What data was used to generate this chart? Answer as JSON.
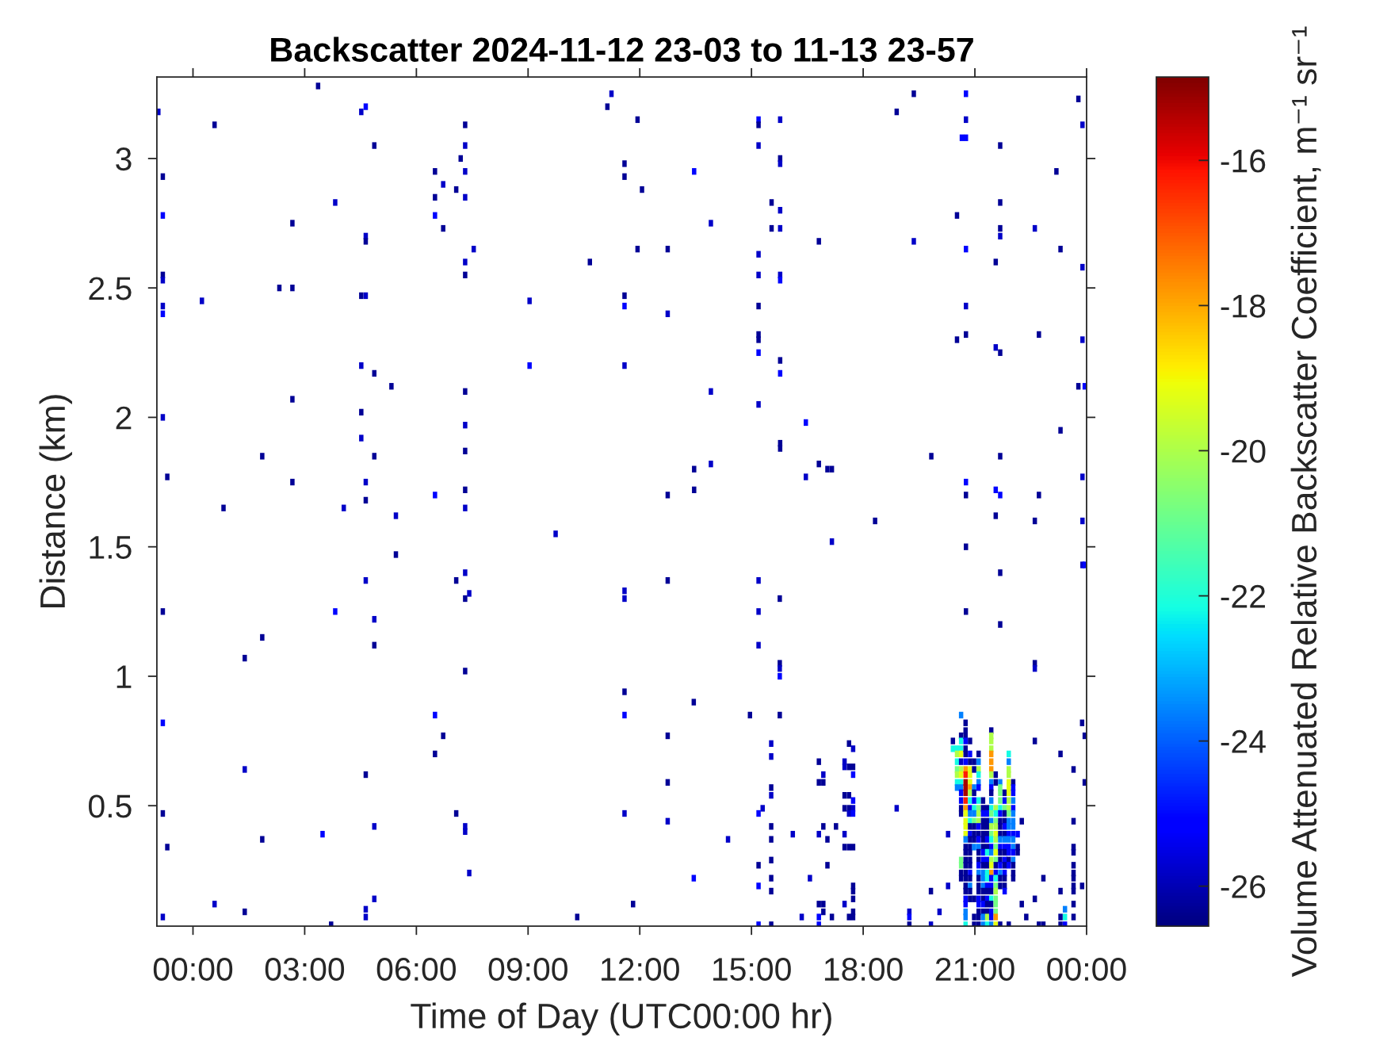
{
  "chart_data": {
    "type": "scatter",
    "title": "Backscatter 2024-11-12 23-03 to 11-13 23-57",
    "xlabel": "Time of Day (UTC00:00 hr)",
    "ylabel": "Distance (km)",
    "clabel": "Volume Attenuated Relative Backscatter Coefficient, m⁻¹ sr⁻¹",
    "xlim": [
      -0.97,
      24
    ],
    "xticks": [
      {
        "value": 0,
        "label": "00:00"
      },
      {
        "value": 3,
        "label": "03:00"
      },
      {
        "value": 6,
        "label": "06:00"
      },
      {
        "value": 9,
        "label": "09:00"
      },
      {
        "value": 12,
        "label": "12:00"
      },
      {
        "value": 15,
        "label": "15:00"
      },
      {
        "value": 18,
        "label": "18:00"
      },
      {
        "value": 21,
        "label": "21:00"
      },
      {
        "value": 24,
        "label": "00:00"
      }
    ],
    "ylim": [
      0.035,
      3.315
    ],
    "yticks": [
      0.5,
      1,
      1.5,
      2,
      2.5,
      3
    ],
    "clim": [
      -26.55,
      -14.85
    ],
    "cticks": [
      -26,
      -24,
      -22,
      -20,
      -18,
      -16
    ],
    "marker": "square",
    "x": [
      3.36,
      11.24,
      11.13,
      4.64,
      4.52,
      -0.93,
      0.58,
      7.31,
      4.87,
      7.31,
      7.19,
      6.5,
      7.31,
      -0.81,
      6.72,
      7.07,
      6.5,
      7.31,
      3.82,
      -0.81,
      6.5,
      2.67,
      6.72,
      4.64,
      4.64,
      7.54,
      7.31,
      10.66,
      7.31,
      -0.81,
      -0.81,
      2.32,
      2.67,
      4.52,
      4.64,
      0.24,
      9.04,
      -0.81,
      -0.81,
      4.52,
      9.04,
      4.87,
      5.33,
      7.31,
      2.67,
      -0.81,
      4.52,
      7.31,
      4.52,
      7.31,
      1.86,
      4.87,
      -0.69,
      2.67,
      4.64,
      7.31,
      6.5,
      4.64,
      11.94,
      15.19,
      15.19,
      15.77,
      19.36,
      20.76,
      18.9,
      20.76,
      23.78,
      23.89,
      20.65,
      20.76,
      21.68,
      15.19,
      15.77,
      15.77,
      11.59,
      13.46,
      11.59,
      12.06,
      23.19,
      15.54,
      15.77,
      21.68,
      20.52,
      13.91,
      15.54,
      15.77,
      21.68,
      21.68,
      22.61,
      16.81,
      19.36,
      11.94,
      12.75,
      20.76,
      23.3,
      15.19,
      21.56,
      23.89,
      15.19,
      15.77,
      15.77,
      11.59,
      11.59,
      12.75,
      15.19,
      20.76,
      15.19,
      15.19,
      20.76,
      20.52,
      22.72,
      23.89,
      21.56,
      21.68,
      15.19,
      15.77,
      11.59,
      15.77,
      13.91,
      23.78,
      23.95,
      15.19,
      16.46,
      23.3,
      15.77,
      15.77,
      19.83,
      21.68,
      13.91,
      13.46,
      16.81,
      17.04,
      17.16,
      16.46,
      23.89,
      13.46,
      12.75,
      20.76,
      20.76,
      21.56,
      21.68,
      22.72,
      0.82,
      4.05,
      5.45,
      7.31,
      9.74,
      5.45,
      4.64,
      7.31,
      7.07,
      7.42,
      7.31,
      -0.81,
      3.82,
      4.87,
      1.86,
      4.87,
      1.39,
      7.31,
      -0.81,
      6.5,
      6.72,
      6.5,
      1.39,
      4.64,
      -0.81,
      7.07,
      4.87,
      7.31,
      7.31,
      3.48,
      -0.69,
      1.86,
      7.42,
      4.87,
      0.58,
      1.39,
      -0.81,
      4.64,
      4.64,
      3.71,
      10.32,
      18.32,
      17.16,
      12.75,
      15.19,
      11.59,
      11.59,
      15.76,
      15.19,
      15.19,
      15.76,
      15.76,
      15.76,
      11.59,
      13.45,
      11.59,
      14.96,
      15.76,
      12.75,
      15.53,
      15.53,
      17.62,
      17.73,
      16.81,
      17.5,
      17.5,
      17.62,
      17.73,
      17.73,
      16.93,
      16.81,
      16.93,
      12.75,
      15.53,
      15.53,
      17.5,
      17.62,
      17.73,
      17.5,
      17.62,
      17.62,
      17.73,
      17.73,
      15.3,
      15.19,
      18.9,
      11.59,
      12.75,
      15.53,
      16.93,
      17.27,
      16.11,
      16.81,
      17.5,
      20.28,
      14.37,
      15.53,
      17.04,
      17.5,
      17.62,
      17.73,
      15.53,
      15.19,
      17.04,
      13.45,
      15.53,
      16.57,
      15.19,
      20.28,
      15.53,
      17.73,
      17.73,
      17.73,
      19.82,
      11.82,
      16.81,
      16.93,
      16.93,
      17.5,
      20.05,
      17.73,
      17.62,
      17.73,
      19.24,
      19.24,
      19.24,
      16.35,
      16.81,
      16.81,
      17.16,
      15.19,
      15.53,
      19.82,
      21.56,
      22.61,
      23.89,
      20.76,
      23.89,
      23.95,
      21.68,
      20.76,
      21.68,
      22.61,
      22.61,
      20.41,
      20.41,
      20.52,
      20.52,
      20.52,
      20.52,
      20.52,
      20.52,
      20.52,
      20.63,
      20.63,
      20.63,
      20.63,
      20.63,
      20.63,
      20.63,
      20.63,
      20.63,
      20.63,
      20.63,
      20.63,
      20.63,
      20.63,
      20.63,
      20.63,
      20.63,
      20.63,
      20.75,
      20.75,
      20.75,
      20.75,
      20.75,
      20.75,
      20.75,
      20.75,
      20.75,
      20.75,
      20.75,
      20.75,
      20.75,
      20.75,
      20.75,
      20.75,
      20.75,
      20.75,
      20.75,
      20.75,
      20.75,
      20.75,
      20.75,
      20.75,
      20.75,
      20.75,
      20.75,
      20.75,
      20.75,
      20.75,
      20.75,
      20.75,
      20.87,
      20.87,
      20.87,
      20.87,
      20.87,
      20.87,
      20.87,
      20.87,
      20.87,
      20.87,
      20.87,
      20.87,
      20.87,
      20.87,
      20.87,
      20.87,
      20.87,
      20.87,
      20.87,
      20.87,
      20.87,
      20.87,
      20.87,
      20.87,
      20.98,
      20.98,
      20.98,
      20.98,
      20.98,
      20.98,
      20.98,
      20.98,
      20.98,
      20.98,
      20.98,
      20.98,
      20.98,
      20.98,
      20.98,
      21.1,
      21.1,
      21.1,
      21.1,
      21.1,
      21.1,
      21.1,
      21.1,
      21.1,
      21.1,
      21.1,
      21.1,
      21.1,
      21.1,
      21.1,
      21.1,
      21.1,
      21.1,
      21.1,
      21.1,
      21.1,
      21.1,
      21.1,
      21.1,
      21.1,
      21.1,
      21.22,
      21.22,
      21.22,
      21.22,
      21.22,
      21.22,
      21.22,
      21.22,
      21.22,
      21.22,
      21.22,
      21.22,
      21.22,
      21.22,
      21.22,
      21.22,
      21.22,
      21.22,
      21.22,
      21.22,
      21.33,
      21.33,
      21.33,
      21.33,
      21.33,
      21.33,
      21.33,
      21.33,
      21.33,
      21.33,
      21.33,
      21.33,
      21.33,
      21.33,
      21.33,
      21.33,
      21.33,
      21.33,
      21.33,
      21.44,
      21.44,
      21.44,
      21.44,
      21.44,
      21.44,
      21.44,
      21.44,
      21.44,
      21.44,
      21.44,
      21.44,
      21.44,
      21.44,
      21.44,
      21.44,
      21.44,
      21.44,
      21.44,
      21.44,
      21.44,
      21.44,
      21.44,
      21.44,
      21.44,
      21.44,
      21.44,
      21.44,
      21.44,
      21.44,
      21.44,
      21.56,
      21.56,
      21.56,
      21.56,
      21.56,
      21.56,
      21.56,
      21.56,
      21.56,
      21.56,
      21.56,
      21.56,
      21.56,
      21.56,
      21.56,
      21.56,
      21.56,
      21.56,
      21.56,
      21.56,
      21.56,
      21.68,
      21.68,
      21.68,
      21.68,
      21.68,
      21.68,
      21.68,
      21.68,
      21.68,
      21.68,
      21.68,
      21.68,
      21.68,
      21.68,
      21.68,
      21.68,
      21.68,
      21.68,
      21.8,
      21.8,
      21.8,
      21.8,
      21.8,
      21.8,
      21.8,
      21.8,
      21.8,
      21.8,
      21.8,
      21.8,
      21.8,
      21.8,
      21.8,
      21.8,
      21.91,
      21.91,
      21.91,
      21.91,
      21.91,
      21.91,
      21.91,
      21.91,
      21.91,
      21.91,
      21.91,
      21.91,
      21.91,
      21.91,
      21.91,
      21.91,
      21.91,
      21.91,
      21.91,
      22.03,
      22.03,
      22.03,
      22.03,
      22.03,
      22.03,
      22.03,
      22.03,
      22.03,
      22.03,
      22.03,
      22.03,
      22.03,
      22.03,
      22.03,
      22.03,
      22.15,
      22.15,
      22.15,
      22.26,
      22.26,
      22.38,
      22.61,
      22.61,
      22.72,
      22.84,
      22.84,
      23.3,
      23.3,
      23.3,
      23.3,
      23.42,
      23.42,
      23.42,
      23.65,
      23.65,
      23.65,
      23.65,
      23.65,
      23.65,
      23.65,
      23.65,
      23.65,
      23.65,
      23.65,
      23.88,
      23.88,
      23.95,
      23.95
    ],
    "values": [
      3.28,
      3.25,
      3.2,
      3.2,
      3.18,
      3.18,
      3.13,
      3.13,
      3.05,
      3.05,
      3.0,
      2.95,
      2.95,
      2.93,
      2.9,
      2.88,
      2.85,
      2.85,
      2.83,
      2.78,
      2.78,
      2.75,
      2.73,
      2.7,
      2.68,
      2.65,
      2.6,
      2.6,
      2.55,
      2.55,
      2.53,
      2.5,
      2.5,
      2.47,
      2.47,
      2.45,
      2.45,
      2.43,
      2.4,
      2.2,
      2.2,
      2.17,
      2.12,
      2.1,
      2.07,
      2.0,
      2.02,
      1.97,
      1.92,
      1.87,
      1.85,
      1.85,
      1.77,
      1.75,
      1.75,
      1.72,
      1.7,
      1.68,
      3.15,
      3.15,
      3.13,
      3.15,
      3.25,
      3.25,
      3.18,
      3.15,
      3.23,
      3.13,
      3.08,
      3.08,
      3.05,
      3.05,
      3.0,
      2.98,
      2.98,
      2.95,
      2.93,
      2.88,
      2.95,
      2.83,
      2.8,
      2.83,
      2.78,
      2.75,
      2.73,
      2.73,
      2.73,
      2.7,
      2.73,
      2.68,
      2.68,
      2.65,
      2.65,
      2.65,
      2.65,
      2.63,
      2.6,
      2.58,
      2.55,
      2.55,
      2.53,
      2.47,
      2.43,
      2.4,
      2.43,
      2.43,
      2.32,
      2.3,
      2.32,
      2.3,
      2.32,
      2.3,
      2.27,
      2.25,
      2.25,
      2.22,
      2.2,
      2.17,
      2.1,
      2.12,
      2.12,
      2.05,
      1.98,
      1.95,
      1.9,
      1.88,
      1.85,
      1.85,
      1.82,
      1.8,
      1.82,
      1.8,
      1.8,
      1.77,
      1.77,
      1.72,
      1.7,
      1.75,
      1.7,
      1.72,
      1.7,
      1.7,
      1.65,
      1.65,
      1.62,
      1.65,
      1.55,
      1.47,
      1.37,
      1.4,
      1.37,
      1.32,
      1.3,
      1.25,
      1.25,
      1.22,
      1.15,
      1.12,
      1.07,
      1.02,
      0.82,
      0.85,
      0.77,
      0.7,
      0.64,
      0.62,
      0.47,
      0.47,
      0.42,
      0.42,
      0.4,
      0.39,
      0.34,
      0.37,
      0.24,
      0.14,
      0.12,
      0.09,
      0.07,
      0.1,
      0.07,
      0.04,
      0.07,
      1.6,
      1.52,
      1.37,
      1.37,
      1.33,
      1.3,
      1.3,
      1.25,
      1.12,
      1.05,
      1.03,
      1.0,
      0.94,
      0.9,
      0.85,
      0.85,
      0.85,
      0.77,
      0.74,
      0.69,
      0.74,
      0.72,
      0.67,
      0.67,
      0.65,
      0.65,
      0.65,
      0.62,
      0.62,
      0.59,
      0.59,
      0.59,
      0.57,
      0.54,
      0.54,
      0.54,
      0.52,
      0.49,
      0.49,
      0.47,
      0.49,
      0.47,
      0.49,
      0.47,
      0.49,
      0.47,
      0.44,
      0.42,
      0.42,
      0.42,
      0.39,
      0.39,
      0.39,
      0.39,
      0.37,
      0.37,
      0.37,
      0.34,
      0.34,
      0.34,
      0.29,
      0.27,
      0.27,
      0.22,
      0.22,
      0.22,
      0.19,
      0.19,
      0.17,
      0.19,
      0.17,
      0.14,
      0.17,
      0.12,
      0.12,
      0.12,
      0.09,
      0.12,
      0.09,
      0.09,
      0.07,
      0.07,
      0.09,
      0.07,
      0.04,
      0.07,
      0.07,
      0.04,
      0.07,
      0.04,
      0.04,
      0.04,
      1.62,
      1.6,
      1.6,
      1.5,
      1.43,
      1.43,
      1.4,
      1.25,
      1.2,
      1.05,
      1.03,
      0.75,
      0.72,
      0.72,
      0.7,
      0.67,
      0.64,
      0.62,
      0.59,
      0.57,
      0.85,
      0.77,
      0.75,
      0.72,
      0.7,
      0.67,
      0.64,
      0.62,
      0.59,
      0.57,
      0.55,
      0.52,
      0.49,
      0.47,
      0.29,
      0.27,
      0.24,
      0.22,
      0.82,
      0.79,
      0.77,
      0.75,
      0.72,
      0.7,
      0.67,
      0.64,
      0.62,
      0.59,
      0.57,
      0.55,
      0.52,
      0.49,
      0.47,
      0.44,
      0.42,
      0.39,
      0.37,
      0.34,
      0.32,
      0.29,
      0.27,
      0.24,
      0.22,
      0.19,
      0.17,
      0.14,
      0.12,
      0.09,
      0.07,
      0.04,
      0.75,
      0.7,
      0.67,
      0.64,
      0.62,
      0.59,
      0.57,
      0.55,
      0.52,
      0.49,
      0.47,
      0.44,
      0.42,
      0.39,
      0.37,
      0.34,
      0.32,
      0.29,
      0.27,
      0.24,
      0.22,
      0.19,
      0.17,
      0.14,
      0.67,
      0.64,
      0.57,
      0.55,
      0.52,
      0.49,
      0.47,
      0.44,
      0.42,
      0.39,
      0.37,
      0.34,
      0.14,
      0.07,
      0.04,
      0.7,
      0.67,
      0.64,
      0.62,
      0.59,
      0.57,
      0.52,
      0.49,
      0.47,
      0.44,
      0.42,
      0.39,
      0.37,
      0.34,
      0.32,
      0.29,
      0.27,
      0.24,
      0.22,
      0.19,
      0.17,
      0.14,
      0.12,
      0.09,
      0.07,
      0.04,
      0.52,
      0.49,
      0.47,
      0.44,
      0.42,
      0.39,
      0.37,
      0.34,
      0.32,
      0.29,
      0.27,
      0.24,
      0.22,
      0.19,
      0.17,
      0.14,
      0.12,
      0.09,
      0.07,
      0.04,
      0.49,
      0.47,
      0.44,
      0.42,
      0.39,
      0.37,
      0.34,
      0.32,
      0.29,
      0.27,
      0.24,
      0.22,
      0.19,
      0.17,
      0.14,
      0.12,
      0.09,
      0.07,
      0.04,
      0.79,
      0.77,
      0.75,
      0.72,
      0.7,
      0.67,
      0.64,
      0.62,
      0.59,
      0.57,
      0.55,
      0.52,
      0.49,
      0.47,
      0.44,
      0.42,
      0.39,
      0.37,
      0.34,
      0.32,
      0.29,
      0.27,
      0.24,
      0.22,
      0.19,
      0.17,
      0.14,
      0.12,
      0.09,
      0.07,
      0.04,
      0.62,
      0.59,
      0.49,
      0.47,
      0.44,
      0.42,
      0.39,
      0.37,
      0.34,
      0.32,
      0.29,
      0.27,
      0.24,
      0.22,
      0.19,
      0.17,
      0.14,
      0.12,
      0.09,
      0.07,
      0.04,
      0.59,
      0.57,
      0.55,
      0.52,
      0.49,
      0.47,
      0.44,
      0.42,
      0.39,
      0.37,
      0.34,
      0.32,
      0.29,
      0.27,
      0.24,
      0.22,
      0.19,
      0.04,
      0.55,
      0.52,
      0.49,
      0.47,
      0.44,
      0.42,
      0.39,
      0.37,
      0.34,
      0.32,
      0.29,
      0.27,
      0.24,
      0.22,
      0.19,
      0.17,
      0.7,
      0.67,
      0.64,
      0.62,
      0.59,
      0.57,
      0.55,
      0.52,
      0.49,
      0.47,
      0.44,
      0.42,
      0.39,
      0.37,
      0.34,
      0.32,
      0.29,
      0.27,
      0.04,
      0.59,
      0.57,
      0.55,
      0.52,
      0.49,
      0.47,
      0.44,
      0.42,
      0.39,
      0.37,
      0.34,
      0.32,
      0.29,
      0.27,
      0.24,
      0.22,
      0.39,
      0.34,
      0.32,
      0.44,
      0.12,
      0.07,
      0.75,
      0.14,
      0.04,
      0.22,
      0.04,
      0.7,
      0.17,
      0.07,
      0.04,
      0.1,
      0.07,
      0.04,
      0.64,
      0.44,
      0.34,
      0.32,
      0.27,
      0.24,
      0.22,
      0.19,
      0.17,
      0.12,
      0.07,
      0.82,
      0.19,
      0.77,
      0.59
    ],
    "cvalues": [
      -26.3,
      -25.8,
      -26.3,
      -25,
      -25.8,
      -25.8,
      -26.3,
      -26.3,
      -26.3,
      -25.8,
      -26.3,
      -26.3,
      -25.8,
      -26.3,
      -25.8,
      -26.3,
      -26.3,
      -25.8,
      -25.8,
      -25,
      -25,
      -26.3,
      -26.3,
      -25.8,
      -26.3,
      -25.8,
      -25.8,
      -26.3,
      -26.3,
      -26.3,
      -25.8,
      -26.3,
      -26.3,
      -26.3,
      -25.8,
      -25.8,
      -25.8,
      -25.8,
      -25,
      -25.8,
      -25,
      -26.3,
      -26.3,
      -26.3,
      -26.3,
      -25.8,
      -26.3,
      -25.8,
      -25.8,
      -26.3,
      -26.3,
      -26.3,
      -26.3,
      -26.3,
      -25.8,
      -26.3,
      -25,
      -26.3,
      -26.3,
      -25,
      -26.3,
      -25.8,
      -26.3,
      -25,
      -26.3,
      -25.8,
      -26.3,
      -25.8,
      -25,
      -25,
      -26.3,
      -25.8,
      -26.3,
      -25.8,
      -26.3,
      -25,
      -26.3,
      -26.3,
      -26.3,
      -26.3,
      -25.8,
      -26.3,
      -26.3,
      -25.8,
      -26.3,
      -25.8,
      -26.3,
      -25.8,
      -25.8,
      -26.3,
      -25.8,
      -26.3,
      -26.3,
      -25,
      -26.3,
      -25.8,
      -26.3,
      -25.8,
      -25.8,
      -25.8,
      -25,
      -26.3,
      -25,
      -25.8,
      -26.3,
      -25.8,
      -26.3,
      -26.3,
      -26.3,
      -26.3,
      -26.3,
      -25.8,
      -25.8,
      -26.3,
      -25,
      -26.3,
      -25.8,
      -25,
      -25.8,
      -26.3,
      -25,
      -25.8,
      -25,
      -26.3,
      -26.3,
      -26.3,
      -26.3,
      -26.3,
      -25.8,
      -26.3,
      -26.3,
      -26.3,
      -26.3,
      -25.8,
      -25.8,
      -26.3,
      -26.3,
      -25,
      -26.3,
      -25,
      -25,
      -26.3,
      -26.3,
      -25.8,
      -25.8,
      -25.8,
      -25.8,
      -26.3,
      -25.8,
      -25.8,
      -26.3,
      -25.8,
      -26.3,
      -26.3,
      -25,
      -25.8,
      -26.3,
      -26.3,
      -26.3,
      -26.3,
      -25,
      -25,
      -26.3,
      -26.3,
      -25.8,
      -26.3,
      -26.3,
      -26.3,
      -25.8,
      -25.8,
      -25.8,
      -25,
      -26.3,
      -26.3,
      -25.8,
      -25.8,
      -25.8,
      -26.3,
      -25.8,
      -25.8,
      -25.8,
      -26.3,
      -26.3,
      -26.3,
      -25.8,
      -26.3,
      -25.8,
      -25.8,
      -25.8,
      -26.3,
      -25.8,
      -25.8,
      -26.3,
      -25.8,
      -25,
      -26.3,
      -26.3,
      -25,
      -26.3,
      -26.3,
      -26.3,
      -25.8,
      -25.8,
      -26.3,
      -25.8,
      -26.3,
      -25.8,
      -25.8,
      -26.3,
      -26.3,
      -25,
      -25.8,
      -26.3,
      -26.3,
      -26.3,
      -26.3,
      -25.8,
      -26.3,
      -26.3,
      -25,
      -26.3,
      -26.3,
      -25.8,
      -25.8,
      -25,
      -25.8,
      -25,
      -25.8,
      -25.8,
      -25.8,
      -26.3,
      -26.3,
      -26.3,
      -25.8,
      -25.8,
      -25.8,
      -25.8,
      -25.8,
      -26.3,
      -26.3,
      -26.3,
      -26.3,
      -26.3,
      -26.3,
      -26.3,
      -26.3,
      -25,
      -26.3,
      -25.8,
      -25,
      -25.8,
      -26.3,
      -26.3,
      -26.3,
      -26.3,
      -26.3,
      -26.3,
      -26.3,
      -26.3,
      -26.3,
      -25.8,
      -25.8,
      -26.3,
      -26.3,
      -26.3,
      -25.8,
      -25,
      -26.3,
      -25.8,
      -25,
      -25,
      -26.3,
      -25,
      -26.3,
      -25.8,
      -26.3,
      -26.3,
      -25.8,
      -26.3,
      -25.8,
      -25,
      -26.3,
      -26.3,
      -26.3,
      -26.3,
      -25.8,
      -26.3,
      -22.2,
      -22.2,
      -20,
      -22.2,
      -20.8,
      -20,
      -22.2,
      -23.6,
      -23.6,
      -26.3,
      -22.2,
      -22.2,
      -19.2,
      -25.8,
      -20,
      -19.2,
      -22.2,
      -23.6,
      -25,
      -25,
      -26.3,
      -26.3,
      -20.8,
      -20.8,
      -26.3,
      -26.3,
      -26.3,
      -26.3,
      -26.3,
      -25,
      -26.3,
      -26.3,
      -25,
      -17.8,
      -16.3,
      -15.3,
      -15.3,
      -15.3,
      -16.3,
      -17.8,
      -19.2,
      -19.2,
      -19.2,
      -19.2,
      -23.6,
      -26.3,
      -26.3,
      -26.3,
      -26.3,
      -26.3,
      -26.3,
      -26.3,
      -26.3,
      -25,
      -25,
      -23.6,
      -23.6,
      -22.2,
      -26.3,
      -25,
      -26.3,
      -19.2,
      -19.2,
      -19.2,
      -17.8,
      -20,
      -22.2,
      -25,
      -23.6,
      -22.2,
      -26.3,
      -25,
      -26.3,
      -26.3,
      -26.3,
      -26.3,
      -26.3,
      -25,
      -26.3,
      -23.6,
      -26.3,
      -26.3,
      -26.3,
      -26.3,
      -23.6,
      -26.3,
      -25,
      -22.2,
      -23.6,
      -20.8,
      -26.3,
      -26.3,
      -26.3,
      -23.6,
      -26.3,
      -26.3,
      -26.3,
      -26.3,
      -23.6,
      -20,
      -22.2,
      -23.6,
      -25,
      -22.2,
      -20.8,
      -20,
      -20,
      -25,
      -26.3,
      -25,
      -23.6,
      -26.3,
      -26.3,
      -25,
      -23.6,
      -26.3,
      -26.3,
      -26.3,
      -25,
      -25,
      -26.3,
      -26.3,
      -26.3,
      -26.3,
      -26.3,
      -25,
      -26.3,
      -26.3,
      -26.3,
      -26.3,
      -26.3,
      -25,
      -25,
      -26.3,
      -23.6,
      -23.6,
      -23.6,
      -26.3,
      -26.3,
      -25,
      -26.3,
      -23.6,
      -23.6,
      -26.3,
      -25,
      -26.3,
      -26.3,
      -26.3,
      -25,
      -26.3,
      -22.2,
      -25,
      -26.3,
      -22.2,
      -22.2,
      -25,
      -26.3,
      -25,
      -26.3,
      -26.3,
      -20,
      -22.2,
      -26.3,
      -20,
      -20,
      -20,
      -17.8,
      -17.8,
      -17.8,
      -20,
      -23.6,
      -25,
      -26.3,
      -23.6,
      -22.2,
      -20.8,
      -23.6,
      -20,
      -20.8,
      -22.2,
      -25,
      -23.6,
      -20,
      -19.2,
      -17.8,
      -25,
      -25,
      -26.3,
      -22.2,
      -26.3,
      -25,
      -25,
      -23.6,
      -26.3,
      -26.3,
      -20,
      -22.2,
      -20.8,
      -20,
      -19.2,
      -20,
      -20.8,
      -19.2,
      -20.8,
      -26.3,
      -25,
      -22.2,
      -20.8,
      -20,
      -20.8,
      -20.8,
      -20.8,
      -17.8,
      -19.2,
      -23.6,
      -20.8,
      -20.8,
      -20.8,
      -22.2,
      -25,
      -26.3,
      -26.3,
      -26.3,
      -23.6,
      -25,
      -26.3,
      -26.3,
      -25,
      -23.6,
      -26.3,
      -26.3,
      -26.3,
      -26.3,
      -25,
      -20.8,
      -26.3,
      -26.3,
      -25,
      -26.3,
      -23.6,
      -25,
      -26.3,
      -25,
      -26.3,
      -25,
      -26.3,
      -26.3,
      -25,
      -22.2,
      -23.6,
      -20,
      -20,
      -19.2,
      -19.2,
      -19.2,
      -20,
      -20,
      -20.8,
      -23.6,
      -23.6,
      -25,
      -23.6,
      -25,
      -25,
      -26.3,
      -25,
      -26.3,
      -26.3,
      -25,
      -25,
      -23.6,
      -25,
      -23.6,
      -23.6,
      -23.6,
      -25,
      -23.6,
      -23.6,
      -25,
      -23.6,
      -26.3,
      -26.3,
      -26.3,
      -25,
      -26.3,
      -26.3,
      -26.3,
      -26.3,
      -26.3,
      -26.3,
      -26.3,
      -26.3,
      -26.3,
      -26.3,
      -26.3,
      -26.3,
      -26.3,
      -26.3,
      -23.6,
      -22.2,
      -25,
      -26.3,
      -26.3,
      -26.3,
      -26.3,
      -26.3,
      -26.3,
      -26.3,
      -26.3,
      -26.3,
      -26.3,
      -26.3,
      -26.3,
      -26.3,
      -26.3,
      -26.3
    ]
  }
}
